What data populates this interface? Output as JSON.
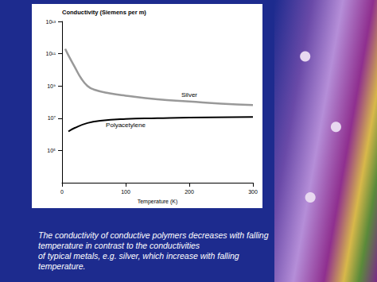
{
  "chart_data": {
    "type": "line",
    "y_label": "Conductivity (Siemens per m)",
    "x_label": "Temperature (K)",
    "log": "y",
    "grid": false,
    "xlim": [
      0,
      300
    ],
    "xticks": [
      0,
      100,
      200,
      300
    ],
    "ylim": [
      1000,
      10000000000000
    ],
    "yticks": [
      {
        "value": 100000,
        "label": "10⁵"
      },
      {
        "value": 10000000,
        "label": "10⁷"
      },
      {
        "value": 1000000000,
        "label": "10⁹"
      },
      {
        "value": 100000000000,
        "label": "10¹¹"
      },
      {
        "value": 10000000000000,
        "label": "10¹³"
      }
    ],
    "series": [
      {
        "name": "Silver",
        "color": "#999999",
        "x": [
          5,
          10,
          20,
          30,
          40,
          50,
          75,
          100,
          150,
          200,
          250,
          300
        ],
        "values": [
          200000000000,
          80000000000,
          15000000000,
          3000000000,
          1000000000,
          600000000,
          350000000,
          250000000,
          150000000,
          110000000,
          80000000,
          65000000
        ]
      },
      {
        "name": "Polyacetylene",
        "color": "#000000",
        "x": [
          10,
          20,
          40,
          60,
          100,
          150,
          200,
          300
        ],
        "values": [
          1500000,
          2500000,
          5000000,
          7000000,
          9000000,
          10000000,
          11000000,
          12000000
        ]
      }
    ],
    "caption": [
      "The conductivity of conductive polymers decreases with falling",
      "temperature in contrast to the conductivities",
      "of typical metals, e.g. silver, which increase with falling",
      "temperature."
    ]
  }
}
